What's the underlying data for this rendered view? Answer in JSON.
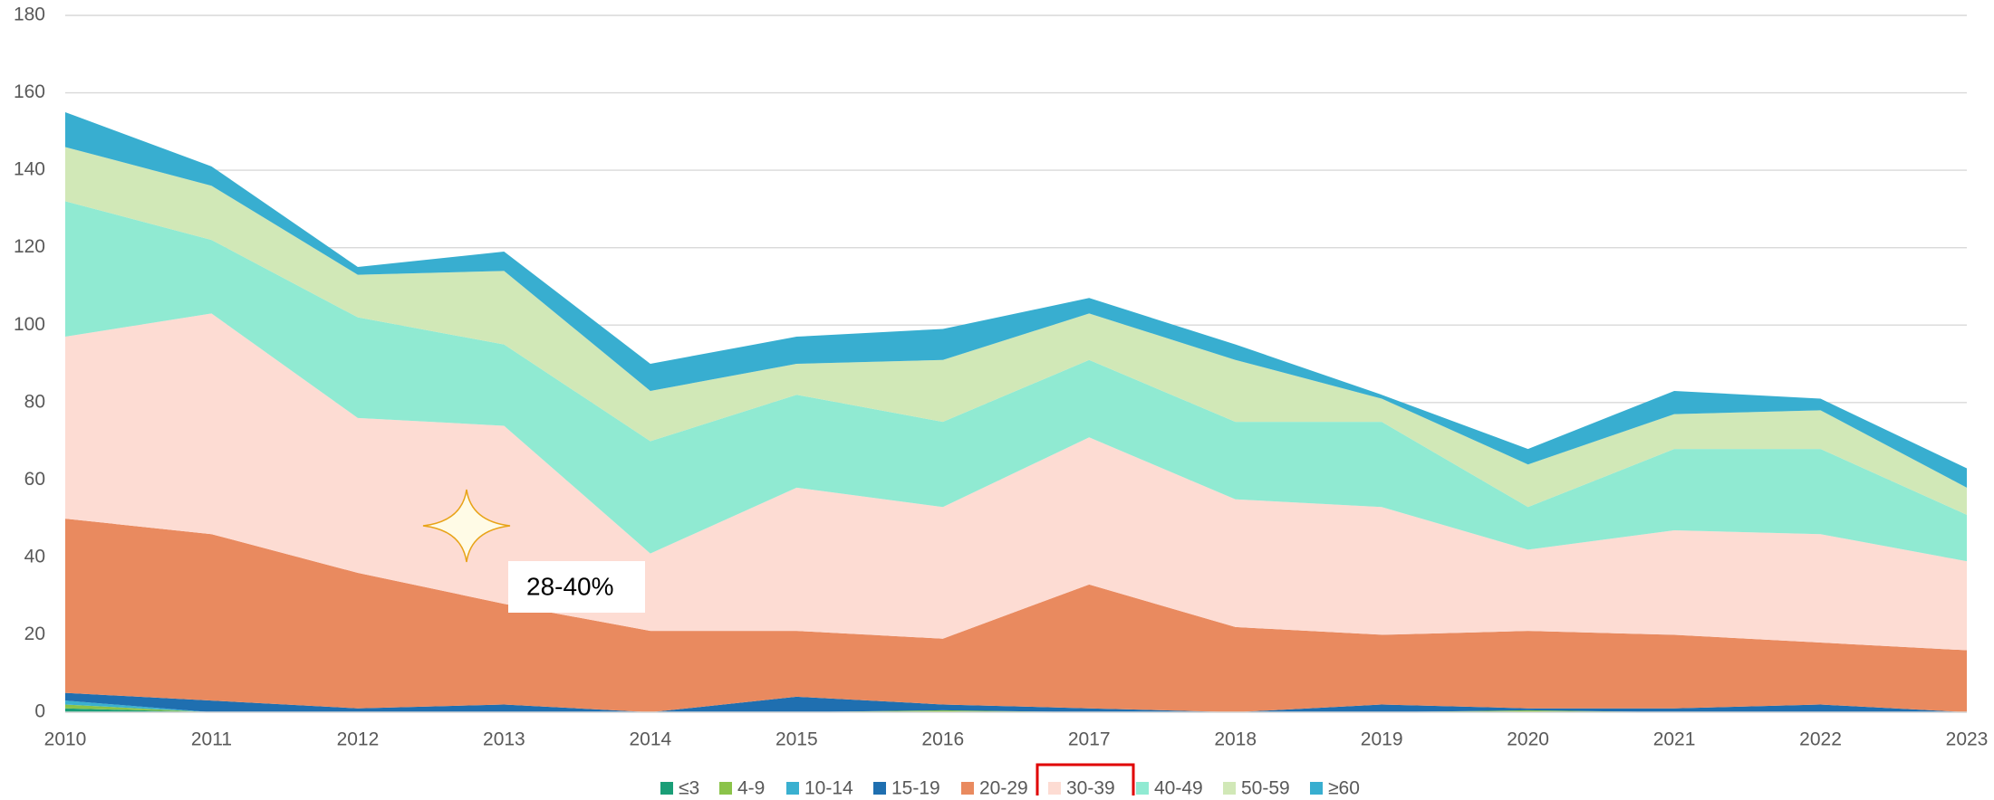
{
  "chart_data": {
    "type": "stacked_area",
    "categories": [
      "2010",
      "2011",
      "2012",
      "2013",
      "2014",
      "2015",
      "2016",
      "2017",
      "2018",
      "2019",
      "2020",
      "2021",
      "2022",
      "2023"
    ],
    "series": [
      {
        "name": "≤3",
        "color": "#1a9e77",
        "values": [
          1,
          0,
          0,
          0,
          0,
          0,
          0,
          0,
          0,
          0,
          0,
          0,
          0,
          0
        ]
      },
      {
        "name": "4-9",
        "color": "#8bc34a",
        "values": [
          1,
          0,
          0,
          0,
          0,
          0,
          0.5,
          0,
          0,
          0,
          0.5,
          0,
          0,
          0
        ]
      },
      {
        "name": "10-14",
        "color": "#3ab0d0",
        "values": [
          1,
          0,
          0,
          0,
          0,
          0,
          0,
          0,
          0,
          0,
          0,
          0,
          0,
          0
        ]
      },
      {
        "name": "15-19",
        "color": "#1f6fb0",
        "values": [
          2,
          3,
          1,
          2,
          0,
          4,
          1.5,
          1,
          0,
          2,
          0.5,
          1,
          2,
          0
        ]
      },
      {
        "name": "20-29",
        "color": "#e98a5f",
        "values": [
          45,
          43,
          35,
          26,
          21,
          17,
          17,
          32,
          22,
          18,
          20,
          19,
          16,
          16
        ]
      },
      {
        "name": "30-39",
        "color": "#fddcd3",
        "values": [
          47,
          57,
          40,
          46,
          20,
          37,
          34,
          38,
          33,
          33,
          21,
          27,
          28,
          23
        ]
      },
      {
        "name": "40-49",
        "color": "#90ead2",
        "values": [
          35,
          19,
          26,
          21,
          29,
          24,
          22,
          20,
          20,
          22,
          11,
          21,
          22,
          12
        ]
      },
      {
        "name": "50-59",
        "color": "#d1e8b7",
        "values": [
          14,
          14,
          11,
          19,
          13,
          8,
          16,
          12,
          16,
          6,
          11,
          9,
          10,
          7
        ]
      },
      {
        "name": "≥60",
        "color": "#38aed0",
        "values": [
          9,
          5,
          2,
          5,
          7,
          7,
          8,
          4,
          4,
          1,
          4,
          6,
          3,
          5
        ]
      }
    ],
    "ylim": [
      0,
      180
    ],
    "yticks": [
      0,
      20,
      40,
      60,
      80,
      100,
      120,
      140,
      160,
      180
    ],
    "grid": true,
    "annotation": "28-40%",
    "highlighted_legend": "30-39"
  }
}
